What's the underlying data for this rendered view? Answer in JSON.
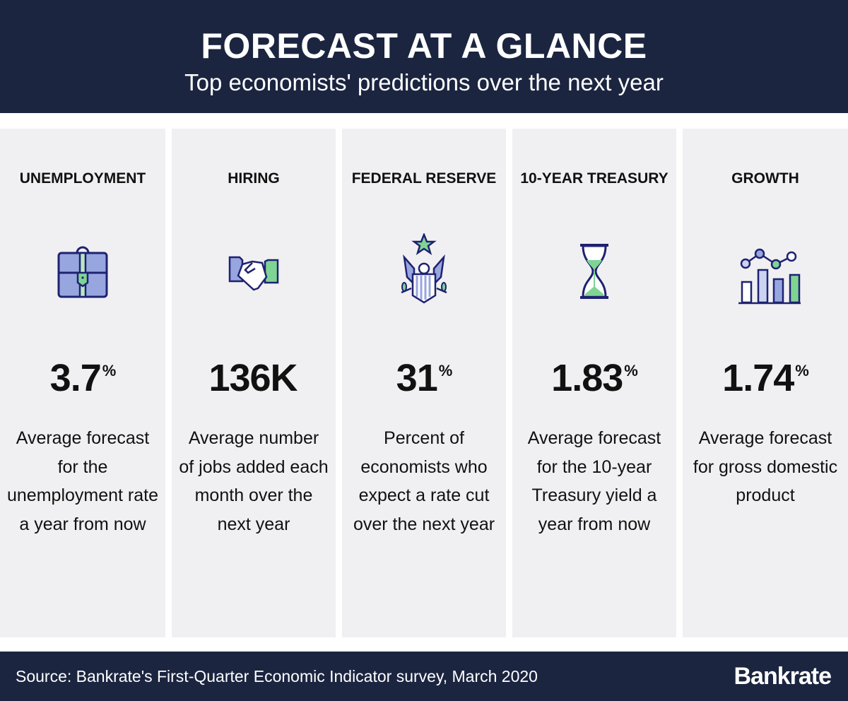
{
  "header": {
    "title": "FORECAST AT A GLANCE",
    "subtitle": "Top economists' predictions over the next year"
  },
  "colors": {
    "navy": "#1b2540",
    "panel": "#f0f0f2",
    "icon_blue": "#98a6e0",
    "icon_green": "#7fd494",
    "icon_outline": "#1e2270"
  },
  "columns": [
    {
      "category": "UNEMPLOYMENT",
      "icon": "briefcase-icon",
      "value": "3.7",
      "unit": "%",
      "description": "Average forecast for the unemployment rate a year from now"
    },
    {
      "category": "HIRING",
      "icon": "handshake-icon",
      "value": "136K",
      "unit": "",
      "description": "Average number of jobs added each month over the next year"
    },
    {
      "category": "FEDERAL RESERVE",
      "icon": "eagle-shield-icon",
      "value": "31",
      "unit": "%",
      "description": "Percent of economists who expect a rate cut over the next year"
    },
    {
      "category": "10-YEAR TREASURY",
      "icon": "hourglass-icon",
      "value": "1.83",
      "unit": "%",
      "description": "Average forecast for the 10-year Treasury yield a year from now"
    },
    {
      "category": "GROWTH",
      "icon": "growth-chart-icon",
      "value": "1.74",
      "unit": "%",
      "description": "Average forecast for gross domestic product"
    }
  ],
  "footer": {
    "source": "Source: Bankrate's First-Quarter Economic Indicator survey, March 2020",
    "logo": "Bankrate"
  }
}
